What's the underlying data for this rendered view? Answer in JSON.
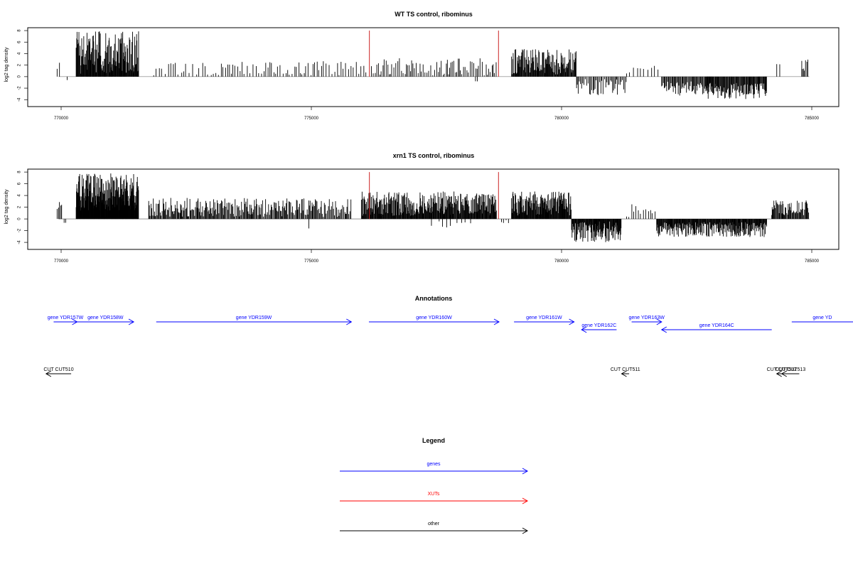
{
  "chart_data": [
    {
      "type": "bar",
      "title": "WT TS control, ribominus",
      "ylabel": "log2 tag density",
      "xlabel": "",
      "xlim": [
        769100,
        785800
      ],
      "ylim": [
        -5.2,
        8.5
      ],
      "xticks": [
        "770000",
        "775000",
        "780000",
        "785000"
      ],
      "yticks": [
        "-4",
        "-2",
        "0",
        "2",
        "4",
        "6",
        "8"
      ],
      "highlight_color": "#cc2222",
      "highlights": [
        776160,
        778740
      ],
      "segments": [
        {
          "from": 769920,
          "to": 770020,
          "level": 2.0,
          "var": 0.4,
          "step": 40
        },
        {
          "from": 770120,
          "to": 770150,
          "level": -1.0,
          "var": 0.3,
          "step": 30
        },
        {
          "from": 770300,
          "to": 771550,
          "level": 4.2,
          "var": 2.3,
          "step": 9
        },
        {
          "from": 771850,
          "to": 773000,
          "level": 1.4,
          "var": 0.9,
          "step": 60
        },
        {
          "from": 773000,
          "to": 774700,
          "level": 1.3,
          "var": 0.8,
          "step": 48
        },
        {
          "from": 774700,
          "to": 776100,
          "level": 1.4,
          "var": 0.9,
          "step": 45
        },
        {
          "from": 776200,
          "to": 778700,
          "level": 1.6,
          "var": 1.0,
          "step": 32
        },
        {
          "from": 778280,
          "to": 778320,
          "level": -1.0,
          "var": 0.2,
          "step": 40
        },
        {
          "from": 779000,
          "to": 780300,
          "level": 2.6,
          "var": 1.4,
          "step": 11
        },
        {
          "from": 780300,
          "to": 781300,
          "level": -1.8,
          "var": 0.9,
          "step": 22
        },
        {
          "from": 781300,
          "to": 782000,
          "level": 1.1,
          "var": 0.5,
          "step": 70
        },
        {
          "from": 782000,
          "to": 783000,
          "level": -2.0,
          "var": 0.8,
          "step": 16
        },
        {
          "from": 782900,
          "to": 784100,
          "level": -2.5,
          "var": 0.9,
          "step": 12
        },
        {
          "from": 784300,
          "to": 784400,
          "level": 2.5,
          "var": 0.3,
          "step": 60
        },
        {
          "from": 784800,
          "to": 784950,
          "level": 2.0,
          "var": 0.6,
          "step": 20
        }
      ]
    },
    {
      "type": "bar",
      "title": "xrn1 TS control, ribominus",
      "ylabel": "log2 tag density",
      "xlabel": "",
      "xlim": [
        769100,
        785800
      ],
      "ylim": [
        -5.2,
        8.5
      ],
      "xticks": [
        "770000",
        "775000",
        "780000",
        "785000"
      ],
      "yticks": [
        "-4",
        "-2",
        "0",
        "2",
        "4",
        "6",
        "8"
      ],
      "highlight_color": "#cc2222",
      "highlights": [
        776160,
        778740
      ],
      "segments": [
        {
          "from": 769920,
          "to": 770020,
          "level": 2.5,
          "var": 0.5,
          "step": 20
        },
        {
          "from": 770060,
          "to": 770120,
          "level": -0.8,
          "var": 0.2,
          "step": 40
        },
        {
          "from": 770300,
          "to": 771550,
          "level": 4.6,
          "var": 2.0,
          "step": 6
        },
        {
          "from": 771750,
          "to": 774000,
          "level": 2.0,
          "var": 1.0,
          "step": 16
        },
        {
          "from": 774000,
          "to": 775800,
          "level": 1.9,
          "var": 1.0,
          "step": 18
        },
        {
          "from": 774950,
          "to": 775000,
          "level": -1.5,
          "var": 0.3,
          "step": 50
        },
        {
          "from": 776000,
          "to": 778700,
          "level": 2.6,
          "var": 1.3,
          "step": 10
        },
        {
          "from": 777400,
          "to": 778300,
          "level": -0.8,
          "var": 0.5,
          "step": 110
        },
        {
          "from": 778800,
          "to": 779000,
          "level": -0.6,
          "var": 0.3,
          "step": 60
        },
        {
          "from": 779000,
          "to": 780200,
          "level": 2.6,
          "var": 1.3,
          "step": 9
        },
        {
          "from": 780200,
          "to": 781200,
          "level": -2.2,
          "var": 1.1,
          "step": 9
        },
        {
          "from": 781300,
          "to": 781900,
          "level": 1.4,
          "var": 0.7,
          "step": 45
        },
        {
          "from": 781900,
          "to": 784100,
          "level": -1.8,
          "var": 0.8,
          "step": 10
        },
        {
          "from": 784200,
          "to": 784950,
          "level": 1.9,
          "var": 0.8,
          "step": 14
        }
      ]
    }
  ],
  "annotations": {
    "title": "Annotations",
    "features": [
      {
        "label": "gene YDR157W",
        "start": 769850,
        "end": 770320,
        "row": 0,
        "color": "#0000ff",
        "dir": "fwd"
      },
      {
        "label": "gene YDR158W",
        "start": 770320,
        "end": 771450,
        "row": 0,
        "color": "#0000ff",
        "dir": "fwd"
      },
      {
        "label": "gene YDR159W",
        "start": 771900,
        "end": 775800,
        "row": 0,
        "color": "#0000ff",
        "dir": "fwd"
      },
      {
        "label": "gene YDR160W",
        "start": 776150,
        "end": 778750,
        "row": 0,
        "color": "#0000ff",
        "dir": "fwd"
      },
      {
        "label": "gene YDR161W",
        "start": 779050,
        "end": 780250,
        "row": 0,
        "color": "#0000ff",
        "dir": "fwd"
      },
      {
        "label": "gene YDR162C",
        "start": 780400,
        "end": 781100,
        "row": 1,
        "color": "#0000ff",
        "dir": "rev"
      },
      {
        "label": "gene YDR163W",
        "start": 781400,
        "end": 782000,
        "row": 0,
        "color": "#0000ff",
        "dir": "fwd"
      },
      {
        "label": "gene YDR164C",
        "start": 782000,
        "end": 784200,
        "row": 1,
        "color": "#0000ff",
        "dir": "rev"
      },
      {
        "label": "gene YD",
        "start": 784600,
        "end": 786200,
        "row": 0,
        "color": "#0000ff",
        "dir": "fwd"
      },
      {
        "label": "CUT CUT510",
        "start": 769700,
        "end": 770200,
        "row": 2,
        "color": "#000000",
        "dir": "rev"
      },
      {
        "label": "CUT CUT511",
        "start": 781200,
        "end": 781350,
        "row": 2,
        "color": "#000000",
        "dir": "rev"
      },
      {
        "label": "CUT CUT512",
        "start": 784300,
        "end": 784500,
        "row": 2,
        "color": "#000000",
        "dir": "rev"
      },
      {
        "label": "CUT CUT513",
        "start": 784400,
        "end": 784750,
        "row": 2,
        "color": "#000000",
        "dir": "rev"
      }
    ]
  },
  "legend": {
    "title": "Legend",
    "items": [
      {
        "label": "genes",
        "color": "#0000ff"
      },
      {
        "label": "XUTs",
        "color": "#ff0000"
      },
      {
        "label": "other",
        "color": "#000000"
      }
    ]
  }
}
